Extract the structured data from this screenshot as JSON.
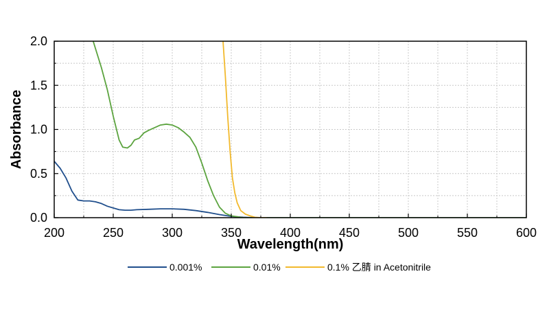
{
  "chart_data": {
    "type": "line",
    "title": "",
    "xlabel": "Wavelength(nm)",
    "ylabel": "Absorbance",
    "xlim": [
      200,
      600
    ],
    "ylim": [
      0,
      2.0
    ],
    "xticks": [
      200,
      250,
      300,
      350,
      400,
      450,
      500,
      550,
      600
    ],
    "yticks": [
      0,
      0.5,
      1.0,
      1.5,
      2.0
    ],
    "xtick_labels": [
      "200",
      "250",
      "300",
      "350",
      "400",
      "450",
      "500",
      "550",
      "600"
    ],
    "ytick_labels": [
      "0.0",
      "0.5",
      "1.0",
      "1.5",
      "2.0"
    ],
    "grid": true,
    "legend_position": "bottom",
    "series": [
      {
        "name": "0.001%",
        "color": "#1f4e8c",
        "points": [
          [
            200,
            0.64
          ],
          [
            205,
            0.56
          ],
          [
            210,
            0.45
          ],
          [
            215,
            0.3
          ],
          [
            220,
            0.2
          ],
          [
            225,
            0.19
          ],
          [
            230,
            0.19
          ],
          [
            235,
            0.18
          ],
          [
            240,
            0.16
          ],
          [
            245,
            0.13
          ],
          [
            250,
            0.11
          ],
          [
            255,
            0.09
          ],
          [
            260,
            0.085
          ],
          [
            265,
            0.085
          ],
          [
            270,
            0.09
          ],
          [
            280,
            0.095
          ],
          [
            290,
            0.1
          ],
          [
            300,
            0.1
          ],
          [
            310,
            0.095
          ],
          [
            320,
            0.08
          ],
          [
            330,
            0.06
          ],
          [
            340,
            0.035
          ],
          [
            350,
            0.015
          ],
          [
            360,
            0.005
          ],
          [
            370,
            0.0
          ],
          [
            380,
            0.0
          ],
          [
            400,
            0.0
          ],
          [
            450,
            0.0
          ],
          [
            500,
            0.0
          ],
          [
            550,
            0.0
          ],
          [
            600,
            0.0
          ]
        ]
      },
      {
        "name": "0.01%",
        "color": "#5ba33e",
        "points": [
          [
            233,
            2.0
          ],
          [
            240,
            1.7
          ],
          [
            245,
            1.45
          ],
          [
            250,
            1.15
          ],
          [
            255,
            0.88
          ],
          [
            258,
            0.8
          ],
          [
            262,
            0.79
          ],
          [
            265,
            0.82
          ],
          [
            268,
            0.88
          ],
          [
            272,
            0.9
          ],
          [
            276,
            0.96
          ],
          [
            280,
            0.99
          ],
          [
            285,
            1.02
          ],
          [
            290,
            1.05
          ],
          [
            295,
            1.06
          ],
          [
            300,
            1.05
          ],
          [
            305,
            1.02
          ],
          [
            310,
            0.97
          ],
          [
            315,
            0.91
          ],
          [
            320,
            0.8
          ],
          [
            325,
            0.62
          ],
          [
            330,
            0.42
          ],
          [
            335,
            0.25
          ],
          [
            340,
            0.12
          ],
          [
            345,
            0.05
          ],
          [
            350,
            0.02
          ],
          [
            355,
            0.01
          ],
          [
            360,
            0.0
          ],
          [
            380,
            0.0
          ],
          [
            600,
            0.0
          ]
        ]
      },
      {
        "name": "0.1% 乙腈 in Acetonitrile",
        "color": "#f2b92c",
        "points": [
          [
            343,
            2.0
          ],
          [
            345,
            1.6
          ],
          [
            347,
            1.15
          ],
          [
            349,
            0.75
          ],
          [
            351,
            0.45
          ],
          [
            353,
            0.28
          ],
          [
            355,
            0.17
          ],
          [
            358,
            0.08
          ],
          [
            362,
            0.04
          ],
          [
            366,
            0.02
          ],
          [
            370,
            0.005
          ],
          [
            375,
            0.0
          ],
          [
            380,
            0.0
          ]
        ]
      }
    ]
  }
}
